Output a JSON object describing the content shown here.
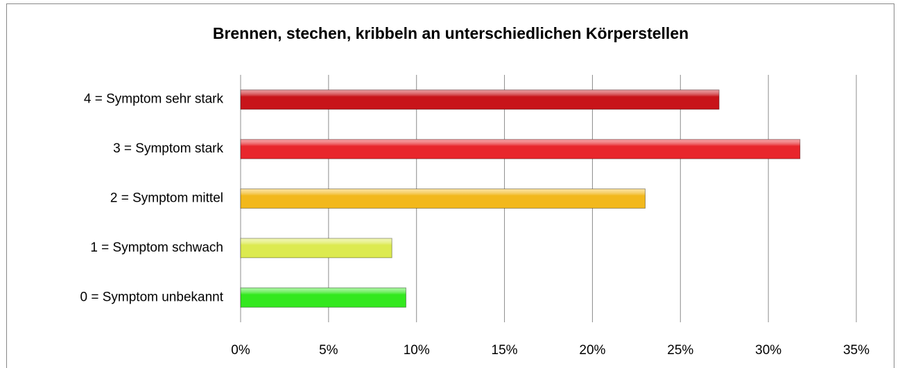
{
  "chart_data": {
    "type": "bar",
    "orientation": "horizontal",
    "title": "Brennen, stechen, kribbeln an unterschiedlichen Körperstellen",
    "categories": [
      "4 = Symptom sehr stark",
      "3 = Symptom stark",
      "2 = Symptom mittel",
      "1 = Symptom schwach",
      "0 = Symptom unbekannt"
    ],
    "values": [
      27.2,
      31.8,
      23.0,
      8.6,
      9.4
    ],
    "colors": [
      "#c8141a",
      "#e8262c",
      "#f2b81c",
      "#dcea50",
      "#33e81e"
    ],
    "xlim": [
      0,
      35
    ],
    "xticks": [
      {
        "value": 0,
        "label": "0%"
      },
      {
        "value": 5,
        "label": "5%"
      },
      {
        "value": 10,
        "label": "10%"
      },
      {
        "value": 15,
        "label": "15%"
      },
      {
        "value": 20,
        "label": "20%"
      },
      {
        "value": 25,
        "label": "25%"
      },
      {
        "value": 30,
        "label": "30%"
      },
      {
        "value": 35,
        "label": "35%"
      }
    ],
    "grid": true
  }
}
